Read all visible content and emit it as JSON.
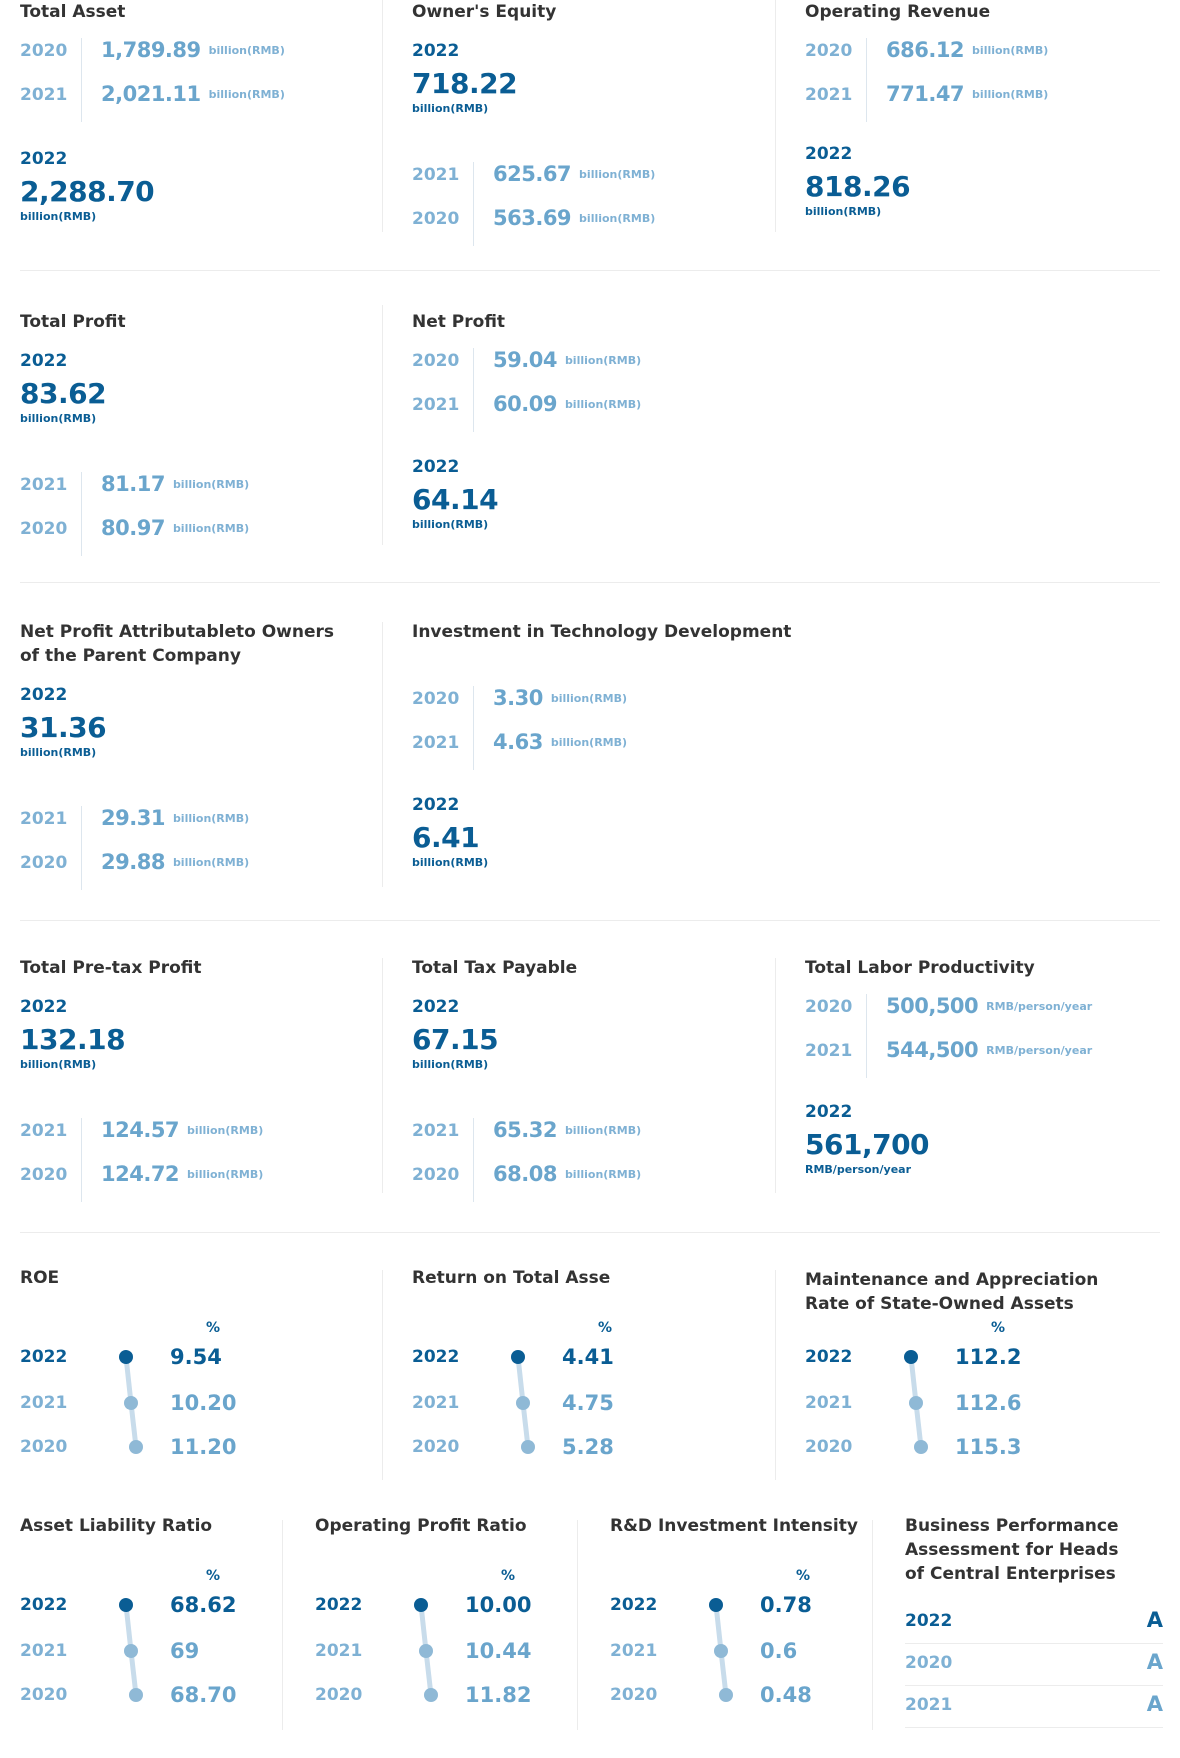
{
  "unit_billion": "billion(RMB)",
  "unit_productivity": "RMB/person/year",
  "unit_percent": "%",
  "colors": {
    "dark": "#0a5d94",
    "light": "#7fb1d4",
    "value_light": "#6aa5cc",
    "line": "#c8dceb"
  },
  "total_asset": {
    "title": "Total Asset",
    "history": [
      {
        "year": "2020",
        "value": "1,789.89"
      },
      {
        "year": "2021",
        "value": "2,021.11"
      }
    ],
    "current": {
      "year": "2022",
      "value": "2,288.70"
    }
  },
  "owners_equity": {
    "title": "Owner's Equity",
    "current": {
      "year": "2022",
      "value": "718.22"
    },
    "history": [
      {
        "year": "2021",
        "value": "625.67"
      },
      {
        "year": "2020",
        "value": "563.69"
      }
    ]
  },
  "operating_revenue": {
    "title": "Operating Revenue",
    "history": [
      {
        "year": "2020",
        "value": "686.12"
      },
      {
        "year": "2021",
        "value": "771.47"
      }
    ],
    "current": {
      "year": "2022",
      "value": "818.26"
    }
  },
  "total_profit": {
    "title": "Total Profit",
    "current": {
      "year": "2022",
      "value": "83.62"
    },
    "history": [
      {
        "year": "2021",
        "value": "81.17"
      },
      {
        "year": "2020",
        "value": "80.97"
      }
    ]
  },
  "net_profit": {
    "title": "Net Profit",
    "history": [
      {
        "year": "2020",
        "value": "59.04"
      },
      {
        "year": "2021",
        "value": "60.09"
      }
    ],
    "current": {
      "year": "2022",
      "value": "64.14"
    }
  },
  "net_profit_parent": {
    "title_line1": "Net Profit Attributableto Owners",
    "title_line2": "of the Parent Company",
    "current": {
      "year": "2022",
      "value": "31.36"
    },
    "history": [
      {
        "year": "2021",
        "value": "29.31"
      },
      {
        "year": "2020",
        "value": "29.88"
      }
    ]
  },
  "tech_investment": {
    "title": "Investment in Technology Development",
    "history": [
      {
        "year": "2020",
        "value": "3.30"
      },
      {
        "year": "2021",
        "value": "4.63"
      }
    ],
    "current": {
      "year": "2022",
      "value": "6.41"
    }
  },
  "pretax_profit": {
    "title": "Total Pre-tax Profit",
    "current": {
      "year": "2022",
      "value": "132.18"
    },
    "history": [
      {
        "year": "2021",
        "value": "124.57"
      },
      {
        "year": "2020",
        "value": "124.72"
      }
    ]
  },
  "tax_payable": {
    "title": "Total Tax Payable",
    "current": {
      "year": "2022",
      "value": "67.15"
    },
    "history": [
      {
        "year": "2021",
        "value": "65.32"
      },
      {
        "year": "2020",
        "value": "68.08"
      }
    ]
  },
  "labor_productivity": {
    "title": "Total Labor Productivity",
    "history": [
      {
        "year": "2020",
        "value": "500,500"
      },
      {
        "year": "2021",
        "value": "544,500"
      }
    ],
    "current": {
      "year": "2022",
      "value": "561,700"
    }
  },
  "roe": {
    "title": "ROE",
    "rows": [
      {
        "year": "2022",
        "value": "9.54"
      },
      {
        "year": "2021",
        "value": "10.20"
      },
      {
        "year": "2020",
        "value": "11.20"
      }
    ]
  },
  "rota": {
    "title": "Return on Total Asse",
    "rows": [
      {
        "year": "2022",
        "value": "4.41"
      },
      {
        "year": "2021",
        "value": "4.75"
      },
      {
        "year": "2020",
        "value": "5.28"
      }
    ]
  },
  "maintenance": {
    "title_line1": "Maintenance and Appreciation",
    "title_line2": "Rate of State-Owned Assets",
    "rows": [
      {
        "year": "2022",
        "value": "112.2"
      },
      {
        "year": "2021",
        "value": "112.6"
      },
      {
        "year": "2020",
        "value": "115.3"
      }
    ]
  },
  "asset_liability": {
    "title": "Asset Liability Ratio",
    "rows": [
      {
        "year": "2022",
        "value": "68.62"
      },
      {
        "year": "2021",
        "value": "69"
      },
      {
        "year": "2020",
        "value": "68.70"
      }
    ]
  },
  "operating_profit_ratio": {
    "title": "Operating Profit Ratio",
    "rows": [
      {
        "year": "2022",
        "value": "10.00"
      },
      {
        "year": "2021",
        "value": "10.44"
      },
      {
        "year": "2020",
        "value": "11.82"
      }
    ]
  },
  "rd_intensity": {
    "title": "R&D Investment Intensity",
    "rows": [
      {
        "year": "2022",
        "value": "0.78"
      },
      {
        "year": "2021",
        "value": "0.6"
      },
      {
        "year": "2020",
        "value": "0.48"
      }
    ]
  },
  "performance": {
    "title_line1": "Business Performance",
    "title_line2": "Assessment for Heads",
    "title_line3": "of Central Enterprises",
    "rows": [
      {
        "year": "2022",
        "grade": "A"
      },
      {
        "year": "2020",
        "grade": "A"
      },
      {
        "year": "2021",
        "grade": "A"
      }
    ]
  }
}
